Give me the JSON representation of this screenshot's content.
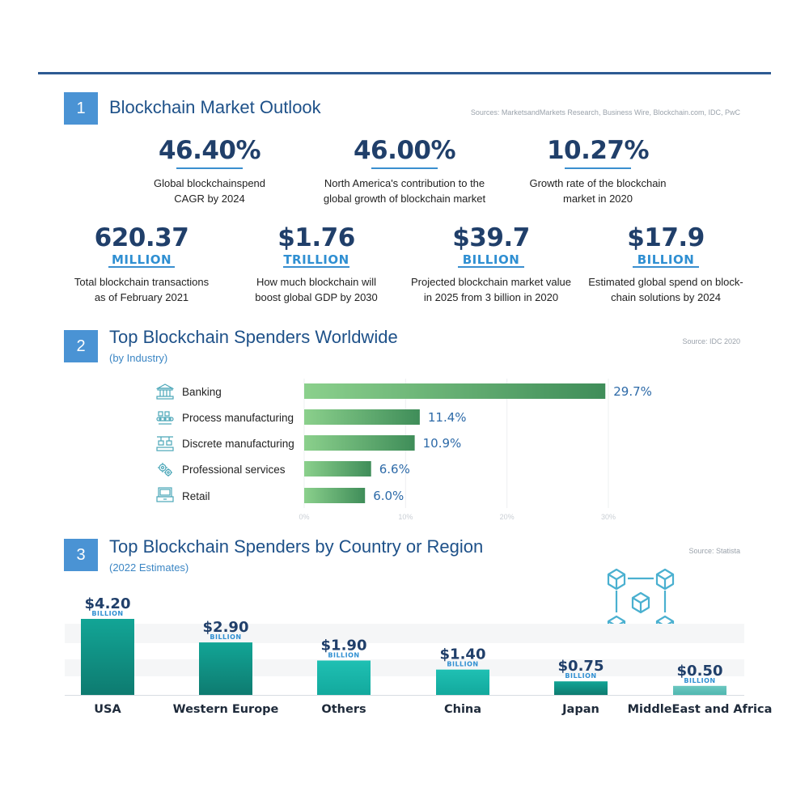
{
  "section1": {
    "number": "1",
    "title": "Blockchain Market Outlook",
    "source": "Sources: MarketsandMarkets Research, Business Wire, Blockchain.com, IDC, PwC",
    "stats_row1": [
      {
        "value": "46.40%",
        "desc_line1": "Global blockchainspend",
        "desc_line2": "CAGR by 2024"
      },
      {
        "value": "46.00%",
        "desc_line1": "North America's contribution to the",
        "desc_line2": "global growth of blockchain market"
      },
      {
        "value": "10.27%",
        "desc_line1": "Growth rate of the blockchain",
        "desc_line2": "market in 2020"
      }
    ],
    "stats_row2": [
      {
        "value": "620.37",
        "unit": "MILLION",
        "desc_line1": "Total blockchain transactions",
        "desc_line2": "as of February 2021"
      },
      {
        "value": "$1.76",
        "unit": "TRILLION",
        "desc_line1": "How much blockchain will",
        "desc_line2": "boost global GDP by 2030"
      },
      {
        "value": "$39.7",
        "unit": "BILLION",
        "desc_line1": "Projected blockchain market value",
        "desc_line2": "in 2025 from 3 billion in 2020"
      },
      {
        "value": "$17.9",
        "unit": "BILLION",
        "desc_line1": "Estimated global spend on block-",
        "desc_line2": "chain solutions by 2024"
      }
    ]
  },
  "section2": {
    "number": "2",
    "title": "Top Blockchain Spenders Worldwide",
    "subtitle": "(by Industry)",
    "source": "Source: IDC 2020",
    "icons": [
      "bank-icon",
      "factory-conveyor-icon",
      "assembly-robot-icon",
      "gears-icon",
      "cash-register-icon"
    ]
  },
  "section3": {
    "number": "3",
    "title": "Top Blockchain Spenders by Country or Region",
    "subtitle": "(2022 Estimates)",
    "source": "Source: Statista",
    "icon": "blockchain-cubes-icon"
  },
  "colors": {
    "accent_blue": "#4a93d4",
    "title_blue": "#1e5189",
    "bar_green_light": "#8bd08c",
    "bar_green_dark": "#3f8d59",
    "teal_dark": "#137f73",
    "teal_light": "#20b8ad"
  },
  "chart_data": [
    {
      "type": "bar",
      "orientation": "horizontal",
      "categories": [
        "Banking",
        "Process manufacturing",
        "Discrete manufacturing",
        "Professional services",
        "Retail"
      ],
      "values": [
        29.7,
        11.4,
        10.9,
        6.6,
        6.0
      ],
      "value_labels": [
        "29.7%",
        "11.4%",
        "10.9%",
        "6.6%",
        "6.0%"
      ],
      "xlim": [
        0,
        30
      ],
      "xticks": [
        "0%",
        "10%",
        "20%",
        "30%"
      ],
      "grid": true
    },
    {
      "type": "bar",
      "orientation": "vertical",
      "categories": [
        "USA",
        "Western Europe",
        "Others",
        "China",
        "Japan",
        "MiddleEast and Africa"
      ],
      "values": [
        4.2,
        2.9,
        1.9,
        1.4,
        0.75,
        0.5
      ],
      "value_labels": [
        "$4.20",
        "$2.90",
        "$1.90",
        "$1.40",
        "$0.75",
        "$0.50"
      ],
      "unit_label": "BILLION",
      "grid": false
    }
  ]
}
